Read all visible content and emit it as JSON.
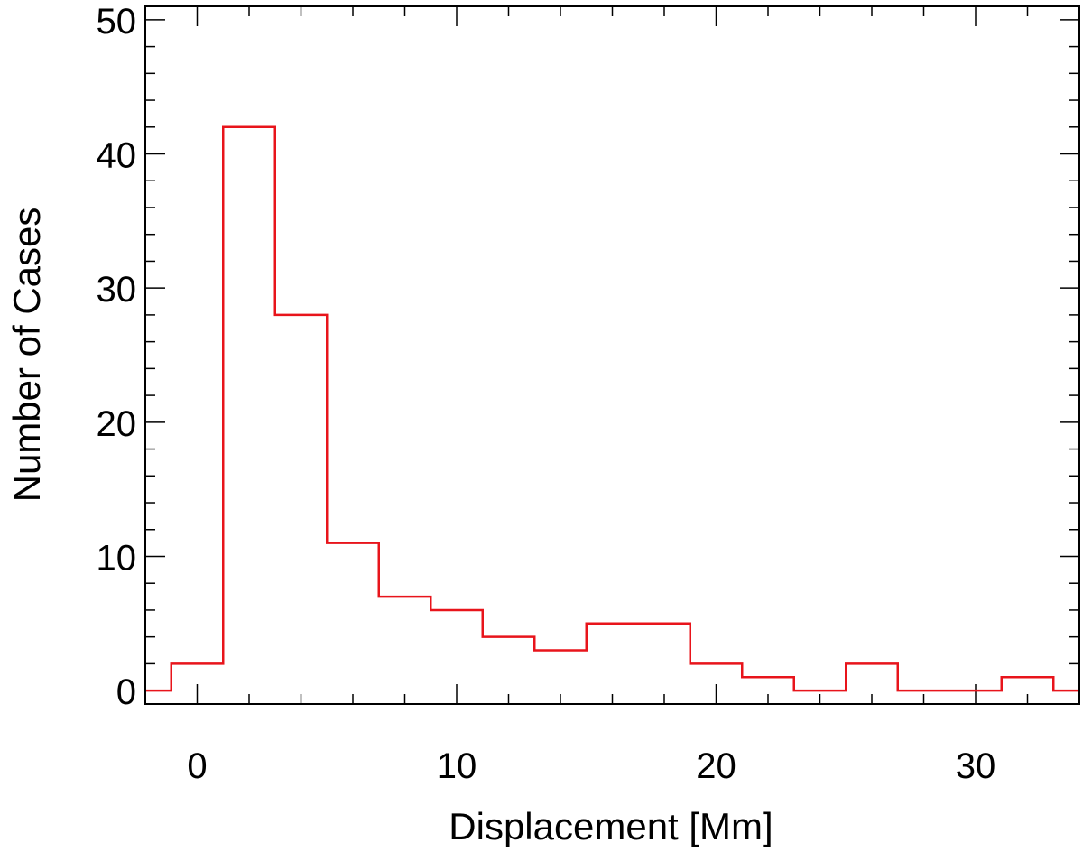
{
  "chart_data": {
    "type": "bar",
    "subtype": "histogram",
    "title": "",
    "xlabel": "Displacement [Mm]",
    "ylabel": "Number of Cases",
    "xlim": [
      -2,
      34
    ],
    "ylim": [
      -1,
      51
    ],
    "xticks": [
      0,
      10,
      20,
      30
    ],
    "yticks": [
      0,
      10,
      20,
      30,
      40,
      50
    ],
    "bin_edges": [
      -2,
      -1,
      1,
      3,
      5,
      7,
      9,
      11,
      13,
      15,
      17,
      19,
      21,
      23,
      25,
      27,
      29,
      31,
      33,
      34
    ],
    "values": [
      0,
      2,
      42,
      28,
      11,
      7,
      6,
      4,
      3,
      5,
      5,
      2,
      1,
      0,
      2,
      0,
      0,
      1,
      0
    ],
    "line_color": "#e8141b",
    "grid": false
  }
}
